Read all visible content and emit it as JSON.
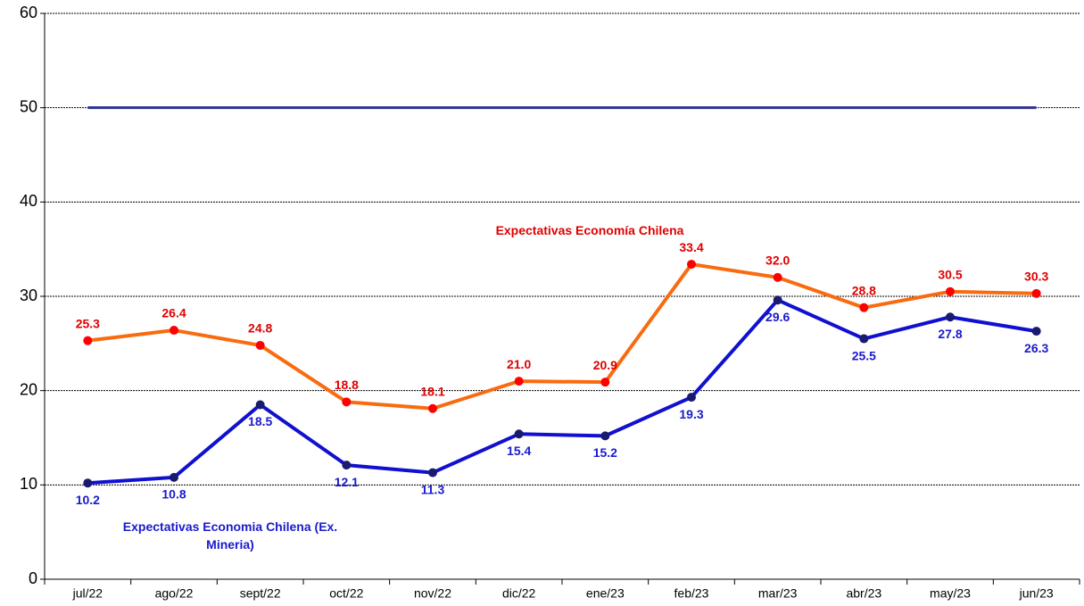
{
  "chart_data": {
    "type": "line",
    "categories": [
      "jul/22",
      "ago/22",
      "sept/22",
      "oct/22",
      "nov/22",
      "dic/22",
      "ene/23",
      "feb/23",
      "mar/23",
      "abr/23",
      "may/23",
      "jun/23"
    ],
    "series": [
      {
        "name": "Expectativas Economía Chilena",
        "color": "#f96b10",
        "marker_color": "#ff0000",
        "label_color": "#e00000",
        "values": [
          25.3,
          26.4,
          24.8,
          18.8,
          18.1,
          21.0,
          20.9,
          33.4,
          32.0,
          28.8,
          30.5,
          30.3
        ],
        "value_labels": [
          "25.3",
          "26.4",
          "24.8",
          "18.8",
          "18.1",
          "21.0",
          "20.9",
          "33.4",
          "32.0",
          "28.8",
          "30.5",
          "30.3"
        ]
      },
      {
        "name": "Expectativas Economia Chilena (Ex. Mineria)",
        "color": "#1010d0",
        "marker_color": "#1a1a6e",
        "label_color": "#1a1acc",
        "values": [
          10.2,
          10.8,
          18.5,
          12.1,
          11.3,
          15.4,
          15.2,
          19.3,
          29.6,
          25.5,
          27.8,
          26.3
        ],
        "value_labels": [
          "10.2",
          "10.8",
          "18.5",
          "12.1",
          "11.3",
          "15.4",
          "15.2",
          "19.3",
          "29.6",
          "25.5",
          "27.8",
          "26.3"
        ]
      }
    ],
    "reference_lines": [
      {
        "value": 50,
        "color": "#2e3192"
      }
    ],
    "ylim": [
      0,
      60
    ],
    "yticks": [
      0,
      10,
      20,
      30,
      40,
      50,
      60
    ],
    "grid": true
  }
}
